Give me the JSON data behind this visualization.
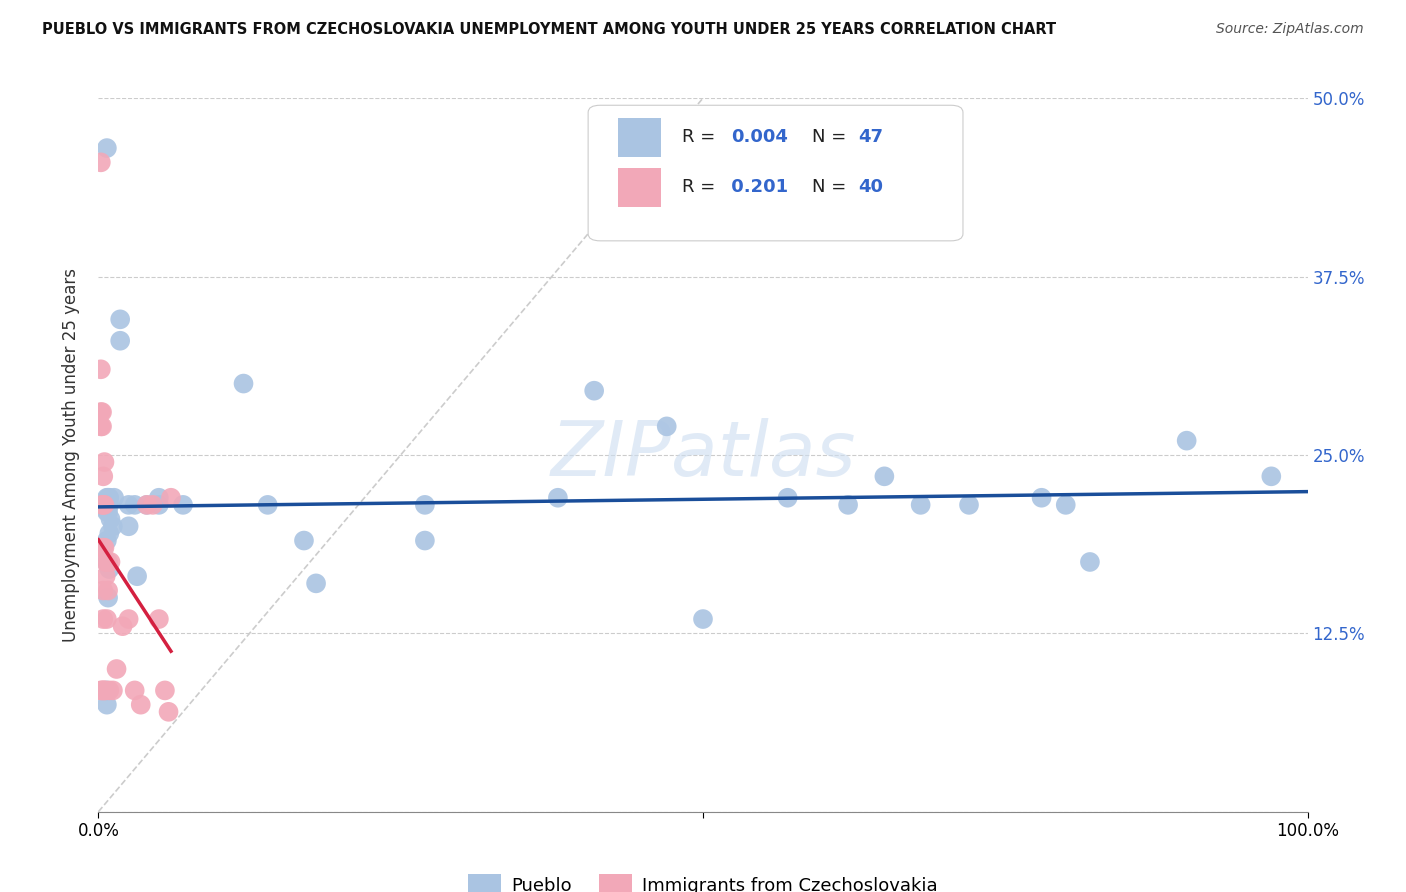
{
  "title": "PUEBLO VS IMMIGRANTS FROM CZECHOSLOVAKIA UNEMPLOYMENT AMONG YOUTH UNDER 25 YEARS CORRELATION CHART",
  "source": "Source: ZipAtlas.com",
  "ylabel": "Unemployment Among Youth under 25 years",
  "xlim": [
    0.0,
    1.0
  ],
  "ylim": [
    0.0,
    0.5
  ],
  "x_ticks": [
    0.0,
    0.5,
    1.0
  ],
  "x_tick_labels": [
    "0.0%",
    "",
    "100.0%"
  ],
  "y_ticks": [
    0.0,
    0.125,
    0.25,
    0.375,
    0.5
  ],
  "y_tick_labels_left": [
    "",
    "",
    "",
    "",
    ""
  ],
  "y_tick_labels_right": [
    "",
    "12.5%",
    "25.0%",
    "37.5%",
    "50.0%"
  ],
  "pueblo_color": "#aac4e2",
  "czech_color": "#f2a8b8",
  "pueblo_line_color": "#1a4e9a",
  "czech_line_color": "#d42040",
  "background_color": "#ffffff",
  "grid_color": "#cccccc",
  "watermark": "ZIPatlas",
  "pueblo_x": [
    0.007,
    0.007,
    0.007,
    0.007,
    0.007,
    0.007,
    0.007,
    0.008,
    0.008,
    0.008,
    0.009,
    0.009,
    0.009,
    0.009,
    0.01,
    0.012,
    0.013,
    0.018,
    0.018,
    0.025,
    0.025,
    0.03,
    0.032,
    0.04,
    0.05,
    0.05,
    0.07,
    0.12,
    0.14,
    0.17,
    0.18,
    0.27,
    0.27,
    0.38,
    0.41,
    0.47,
    0.5,
    0.57,
    0.62,
    0.65,
    0.68,
    0.72,
    0.78,
    0.8,
    0.82,
    0.9,
    0.97
  ],
  "pueblo_y": [
    0.465,
    0.22,
    0.21,
    0.19,
    0.175,
    0.085,
    0.075,
    0.22,
    0.21,
    0.15,
    0.22,
    0.195,
    0.215,
    0.17,
    0.205,
    0.2,
    0.22,
    0.345,
    0.33,
    0.215,
    0.2,
    0.215,
    0.165,
    0.215,
    0.215,
    0.22,
    0.215,
    0.3,
    0.215,
    0.19,
    0.16,
    0.215,
    0.19,
    0.22,
    0.295,
    0.27,
    0.135,
    0.22,
    0.215,
    0.235,
    0.215,
    0.215,
    0.22,
    0.215,
    0.175,
    0.26,
    0.235
  ],
  "czech_x": [
    0.002,
    0.002,
    0.002,
    0.002,
    0.002,
    0.003,
    0.003,
    0.003,
    0.003,
    0.003,
    0.004,
    0.004,
    0.004,
    0.004,
    0.004,
    0.004,
    0.005,
    0.005,
    0.005,
    0.005,
    0.006,
    0.006,
    0.006,
    0.007,
    0.008,
    0.008,
    0.009,
    0.01,
    0.012,
    0.015,
    0.02,
    0.025,
    0.03,
    0.035,
    0.04,
    0.045,
    0.05,
    0.055,
    0.058,
    0.06
  ],
  "czech_y": [
    0.455,
    0.31,
    0.28,
    0.27,
    0.085,
    0.28,
    0.27,
    0.215,
    0.185,
    0.085,
    0.235,
    0.215,
    0.185,
    0.155,
    0.135,
    0.085,
    0.245,
    0.215,
    0.185,
    0.085,
    0.175,
    0.165,
    0.085,
    0.135,
    0.175,
    0.155,
    0.085,
    0.175,
    0.085,
    0.1,
    0.13,
    0.135,
    0.085,
    0.075,
    0.215,
    0.215,
    0.135,
    0.085,
    0.07,
    0.22
  ]
}
